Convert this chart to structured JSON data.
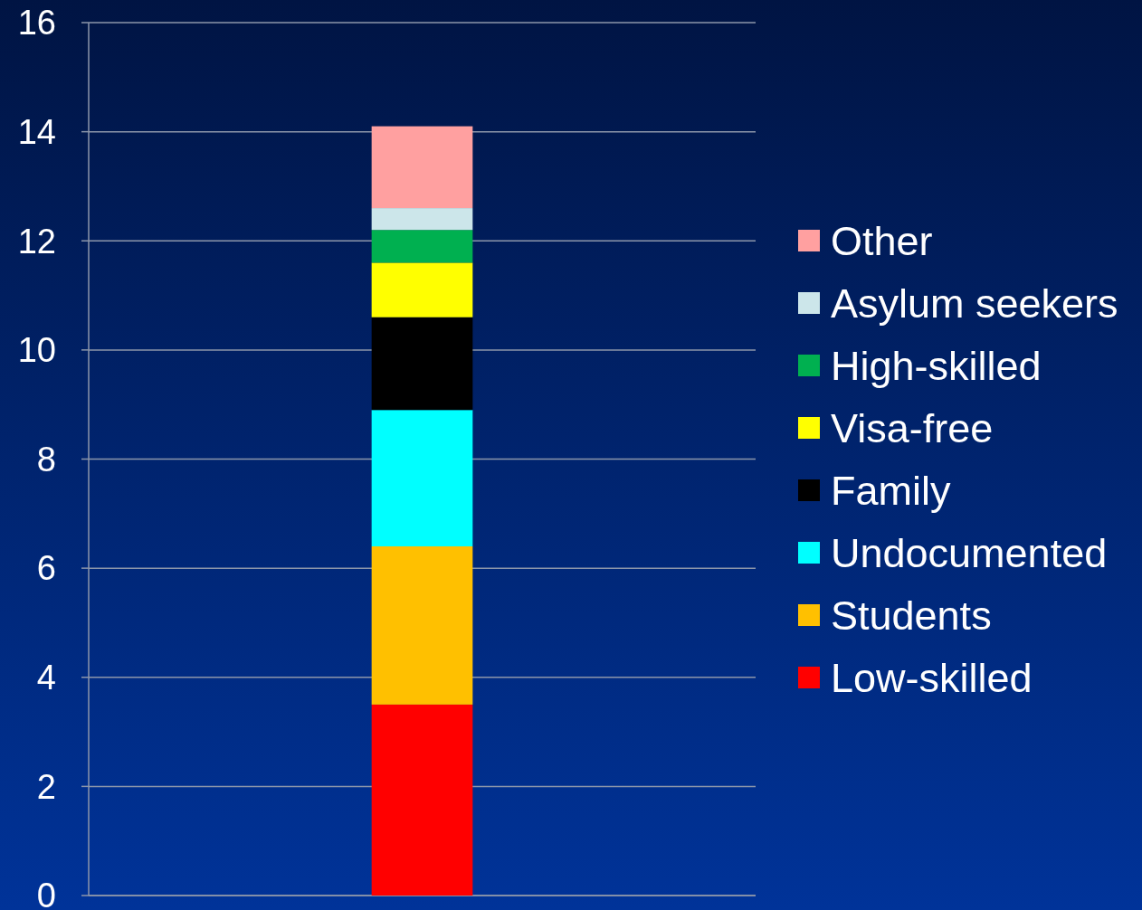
{
  "chart_data": {
    "type": "bar",
    "stacked": true,
    "categories": [
      null
    ],
    "series": [
      {
        "name": "Low-skilled",
        "color": "#ff0000",
        "values": [
          3.5
        ]
      },
      {
        "name": "Students",
        "color": "#ffc000",
        "values": [
          2.9
        ]
      },
      {
        "name": "Undocumented",
        "color": "#00ffff",
        "values": [
          2.5
        ]
      },
      {
        "name": "Family",
        "color": "#000000",
        "values": [
          1.7
        ]
      },
      {
        "name": "Visa-free",
        "color": "#ffff00",
        "values": [
          1.0
        ]
      },
      {
        "name": "High-skilled",
        "color": "#00b050",
        "values": [
          0.6
        ]
      },
      {
        "name": "Asylum seekers",
        "color": "#cce6ea",
        "values": [
          0.4
        ]
      },
      {
        "name": "Other",
        "color": "#ffa0a0",
        "values": [
          1.5
        ]
      }
    ],
    "ylim": [
      0,
      16
    ],
    "yticks": [
      0,
      2,
      4,
      6,
      8,
      10,
      12,
      14,
      16
    ],
    "grid": "y",
    "legend": "right",
    "tick_labels": "y"
  }
}
